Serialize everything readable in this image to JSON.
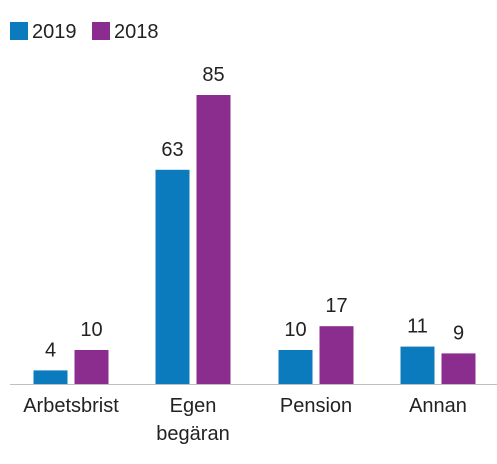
{
  "chart_data": {
    "type": "bar",
    "categories": [
      "Arbetsbrist",
      "Egen begäran",
      "Pension",
      "Annan"
    ],
    "series": [
      {
        "name": "2019",
        "color": "#0b7bbd",
        "values": [
          4,
          63,
          10,
          11
        ]
      },
      {
        "name": "2018",
        "color": "#8b2d8e",
        "values": [
          10,
          85,
          17,
          9
        ]
      }
    ],
    "legend": "top-left"
  }
}
